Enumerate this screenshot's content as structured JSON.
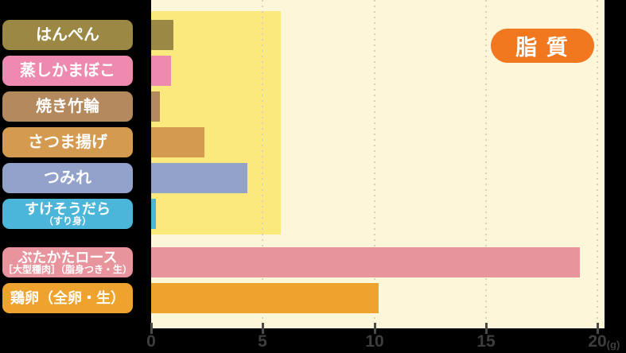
{
  "badge": {
    "label": "脂 質",
    "color": "#f1781e"
  },
  "plot": {
    "background": "#fdf6d8",
    "highlight_color": "#fbe97e",
    "page_background": "#000000"
  },
  "axis": {
    "unit": "(g)",
    "ticks": [
      {
        "value": 0,
        "label": "0"
      },
      {
        "value": 5,
        "label": "5"
      },
      {
        "value": 10,
        "label": "10"
      },
      {
        "value": 15,
        "label": "15"
      },
      {
        "value": 20,
        "label": "20",
        "unit": "(g)"
      }
    ],
    "gridline_values": [
      5,
      10,
      15,
      20
    ]
  },
  "rows": [
    {
      "label": "はんぺん",
      "sublabel": "",
      "value": 1.0,
      "display": "1.0",
      "color": "#9c8845"
    },
    {
      "label": "蒸しかまぼこ",
      "sublabel": "",
      "value": 0.9,
      "display": "0.9",
      "color": "#ee8ab0"
    },
    {
      "label": "焼き竹輪",
      "sublabel": "",
      "value": 0.4,
      "display": "0.4",
      "color": "#b4895e"
    },
    {
      "label": "さつま揚げ",
      "sublabel": "",
      "value": 2.4,
      "display": "2.4",
      "color": "#d49a4f"
    },
    {
      "label": "つみれ",
      "sublabel": "",
      "value": 4.3,
      "display": "4.3",
      "color": "#92a2cb"
    },
    {
      "label": "すけそうだら",
      "sublabel": "（すり身）",
      "value": 0.2,
      "display": "0.2",
      "color": "#4bb6d9"
    },
    {
      "label": "ぶたかたロース",
      "sublabel": "［大型種肉］（脂身つき・生）",
      "value": 19.2,
      "display": "19.2",
      "color": "#e8949d"
    },
    {
      "label": "鶏卵（全卵・生）",
      "sublabel": "",
      "value": 10.2,
      "display": "10.2",
      "color": "#eea32f"
    }
  ],
  "chart_data": {
    "type": "bar",
    "orientation": "horizontal",
    "title": "脂質",
    "xlabel": "(g)",
    "ylabel": "",
    "xlim": [
      0,
      20
    ],
    "x_ticks": [
      0,
      5,
      10,
      15,
      20
    ],
    "grid": "dotted-vertical",
    "legend": "none",
    "highlighted_group": "練り製品（先頭6項目）",
    "categories": [
      "はんぺん",
      "蒸しかまぼこ",
      "焼き竹輪",
      "さつま揚げ",
      "つみれ",
      "すけそうだら（すり身）",
      "ぶたかたロース［大型種肉］（脂身つき・生）",
      "鶏卵（全卵・生）"
    ],
    "values": [
      1.0,
      0.9,
      0.4,
      2.4,
      4.3,
      0.2,
      19.2,
      10.2
    ]
  }
}
